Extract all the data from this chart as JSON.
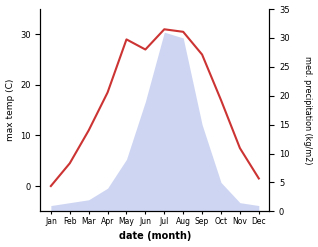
{
  "months": [
    "Jan",
    "Feb",
    "Mar",
    "Apr",
    "May",
    "Jun",
    "Jul",
    "Aug",
    "Sep",
    "Oct",
    "Nov",
    "Dec"
  ],
  "temperature": [
    0.0,
    4.5,
    11.0,
    18.5,
    29.0,
    27.0,
    31.0,
    30.5,
    26.0,
    17.0,
    7.5,
    1.5
  ],
  "precipitation": [
    1.0,
    1.5,
    2.0,
    4.0,
    9.0,
    19.0,
    31.0,
    30.0,
    15.0,
    5.0,
    1.5,
    1.0
  ],
  "temp_ylim": [
    -5,
    35
  ],
  "precip_ylim": [
    0,
    35
  ],
  "temp_yticks": [
    0,
    10,
    20,
    30
  ],
  "precip_yticks": [
    0,
    5,
    10,
    15,
    20,
    25,
    30,
    35
  ],
  "xlabel": "date (month)",
  "ylabel_left": "max temp (C)",
  "ylabel_right": "med. precipitation (kg/m2)",
  "temp_color": "#cc3333",
  "precip_fill_color": "#c5cef0",
  "precip_alpha": 0.85,
  "background_color": "#ffffff",
  "fig_width": 3.18,
  "fig_height": 2.47,
  "dpi": 100
}
